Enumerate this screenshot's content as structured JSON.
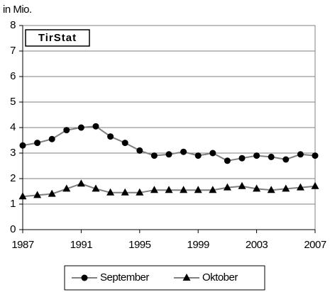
{
  "chart_data": {
    "type": "line",
    "y_label": "in Mio.",
    "annotation": "TirStat",
    "x": [
      1987,
      1988,
      1989,
      1990,
      1991,
      1992,
      1993,
      1994,
      1995,
      1996,
      1997,
      1998,
      1999,
      2000,
      2001,
      2002,
      2003,
      2004,
      2005,
      2006,
      2007
    ],
    "series": [
      {
        "name": "September",
        "color": "#808080",
        "marker": "circle",
        "values": [
          3.3,
          3.4,
          3.55,
          3.9,
          4.0,
          4.05,
          3.65,
          3.4,
          3.1,
          2.9,
          2.95,
          3.05,
          2.9,
          3.0,
          2.7,
          2.8,
          2.9,
          2.85,
          2.75,
          2.95,
          2.9
        ]
      },
      {
        "name": "Oktober",
        "color": "#808080",
        "marker": "triangle",
        "values": [
          1.3,
          1.35,
          1.4,
          1.6,
          1.8,
          1.6,
          1.45,
          1.45,
          1.45,
          1.55,
          1.55,
          1.55,
          1.55,
          1.55,
          1.65,
          1.7,
          1.6,
          1.55,
          1.6,
          1.65,
          1.7
        ]
      }
    ],
    "xlim": [
      1987,
      2007
    ],
    "xticks": [
      1987,
      1991,
      1995,
      1999,
      2003,
      2007
    ],
    "ylim": [
      0,
      8
    ],
    "yticks": [
      0,
      1,
      2,
      3,
      4,
      5,
      6,
      7,
      8
    ],
    "grid": true,
    "legend": "bottom"
  }
}
